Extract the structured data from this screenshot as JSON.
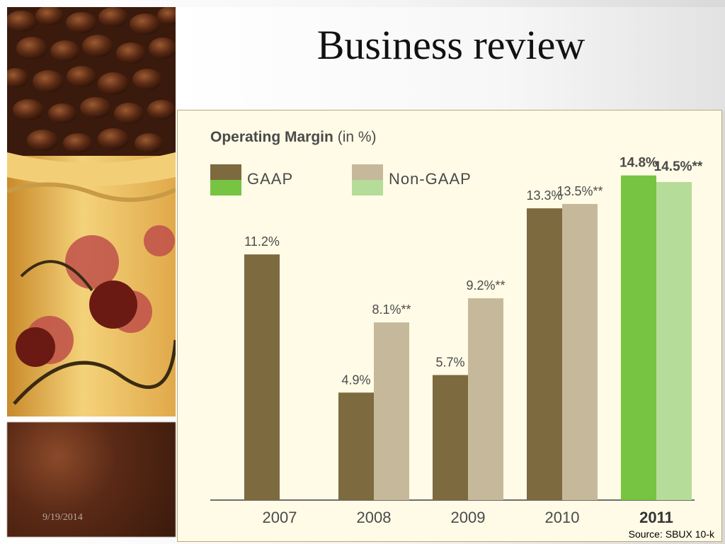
{
  "slide": {
    "title": "Business review",
    "date": "9/19/2014",
    "source": "Source: SBUX 10-k"
  },
  "colors": {
    "gaap": "#7d6a3f",
    "non_gaap": "#c6b99b",
    "gaap_highlight": "#76c442",
    "non_gaap_highlight": "#b6dc99",
    "panel_bg": "#fffbe6"
  },
  "chart_data": {
    "type": "bar",
    "title": "Operating Margin",
    "title_unit": "(in %)",
    "categories": [
      "2007",
      "2008",
      "2009",
      "2010",
      "2011"
    ],
    "highlight_category": "2011",
    "series": [
      {
        "name": "GAAP",
        "values": [
          11.2,
          4.9,
          5.7,
          13.3,
          14.8
        ],
        "labels": [
          "11.2%",
          "4.9%",
          "5.7%",
          "13.3%",
          "14.8%"
        ]
      },
      {
        "name": "Non-GAAP",
        "values": [
          null,
          8.1,
          9.2,
          13.5,
          14.5
        ],
        "labels": [
          "",
          "8.1%**",
          "9.2%**",
          "13.5%**",
          "14.5%**"
        ]
      }
    ],
    "ylim": [
      0,
      15.5
    ],
    "grid": false,
    "legend_position": "top-left"
  }
}
